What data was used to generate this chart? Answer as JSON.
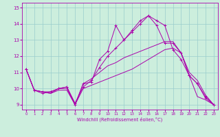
{
  "xlabel": "Windchill (Refroidissement éolien,°C)",
  "bg_color": "#cceedd",
  "grid_color": "#99cccc",
  "line_color": "#aa00aa",
  "x_values": [
    0,
    1,
    2,
    3,
    4,
    5,
    6,
    7,
    8,
    9,
    10,
    11,
    12,
    13,
    14,
    15,
    16,
    17,
    18,
    19,
    20,
    21,
    22,
    23
  ],
  "series1": [
    11.2,
    9.9,
    9.7,
    9.8,
    10.0,
    10.1,
    9.0,
    10.3,
    10.4,
    11.8,
    12.3,
    13.9,
    13.0,
    13.6,
    14.2,
    14.5,
    13.9,
    12.8,
    12.8,
    12.2,
    10.8,
    10.3,
    9.4,
    9.0
  ],
  "series2": [
    11.2,
    9.9,
    9.8,
    9.8,
    10.0,
    10.1,
    9.1,
    10.1,
    10.5,
    11.3,
    12.0,
    12.5,
    13.0,
    13.5,
    14.0,
    14.5,
    14.2,
    13.9,
    12.4,
    11.8,
    10.8,
    10.3,
    9.5,
    9.0
  ],
  "series3": [
    11.2,
    9.9,
    9.8,
    9.7,
    10.0,
    10.0,
    9.0,
    10.3,
    10.6,
    11.0,
    11.4,
    11.6,
    11.9,
    12.1,
    12.3,
    12.5,
    12.7,
    12.9,
    12.9,
    12.2,
    11.0,
    10.5,
    9.6,
    9.0
  ],
  "series4": [
    11.2,
    9.9,
    9.8,
    9.7,
    9.9,
    9.9,
    9.0,
    10.0,
    10.2,
    10.4,
    10.6,
    10.8,
    11.0,
    11.2,
    11.5,
    11.8,
    12.1,
    12.4,
    12.5,
    12.2,
    10.8,
    9.5,
    9.3,
    9.0
  ],
  "ylim": [
    8.7,
    15.3
  ],
  "xlim": [
    -0.5,
    23.5
  ],
  "yticks": [
    9,
    10,
    11,
    12,
    13,
    14,
    15
  ],
  "xticks": [
    0,
    1,
    2,
    3,
    4,
    5,
    6,
    7,
    8,
    9,
    10,
    11,
    12,
    13,
    14,
    15,
    16,
    17,
    18,
    19,
    20,
    21,
    22,
    23
  ]
}
